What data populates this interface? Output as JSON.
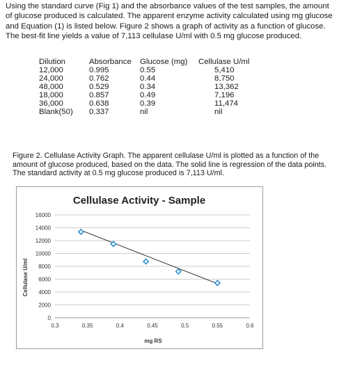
{
  "intro": "Using the standard curve (Fig 1) and the absorbance values of the test samples, the amount of glucose produced is calculated.  The apparent enzyme activity calculated using mg glucose and Equation (1) is listed below.  Figure 2 shows a graph of activity as a function of glucose.  The best-fit line yields a value of 7,113 cellulase U/ml with 0.5 mg glucose produced.",
  "table": {
    "headers": [
      "Dilution",
      "Absorbance",
      "Glucose (mg)",
      "Cellulase U/ml"
    ],
    "rows": [
      [
        "12,000",
        "0.995",
        "0.55",
        "5,410"
      ],
      [
        "24,000",
        "0.762",
        "0.44",
        "8,750"
      ],
      [
        "48,000",
        "0.529",
        "0.34",
        "13,362"
      ],
      [
        "18,000",
        "0.857",
        "0.49",
        "7,196"
      ],
      [
        "36,000",
        "0.638",
        "0.39",
        "11,474"
      ],
      [
        "Blank(50)",
        "0.337",
        "nil",
        "nil"
      ]
    ]
  },
  "caption": "Figure 2.  Cellulase Activity Graph.  The apparent cellulase U/ml is plotted as a function of the amount of glucose produced, based on the data.  The solid line is regression of the data points.  The standard activity at 0.5 mg glucose produced is 7,113 U/ml.",
  "chart_data": {
    "type": "scatter",
    "title": "Cellulase Activity - Sample",
    "xlabel": "mg RS",
    "ylabel": "Cellulase U/ml",
    "xlim": [
      0.3,
      0.6
    ],
    "ylim": [
      0,
      16000
    ],
    "x_ticks": [
      "0.3",
      "0.35",
      "0.4",
      "0.45",
      "0.5",
      "0.55",
      "0.6"
    ],
    "y_ticks": [
      "0",
      "2000",
      "4000",
      "6000",
      "8000",
      "10000",
      "12000",
      "14000",
      "16000"
    ],
    "grid": true,
    "points": [
      {
        "x": 0.34,
        "y": 13362
      },
      {
        "x": 0.39,
        "y": 11474
      },
      {
        "x": 0.44,
        "y": 8750
      },
      {
        "x": 0.49,
        "y": 7196
      },
      {
        "x": 0.55,
        "y": 5410
      }
    ],
    "trendline": {
      "x": [
        0.34,
        0.55
      ],
      "y": [
        13600,
        5300
      ]
    },
    "colors": {
      "marker": "#2f8fd1",
      "trendline": "#222222",
      "grid": "#bdbdbd"
    }
  }
}
